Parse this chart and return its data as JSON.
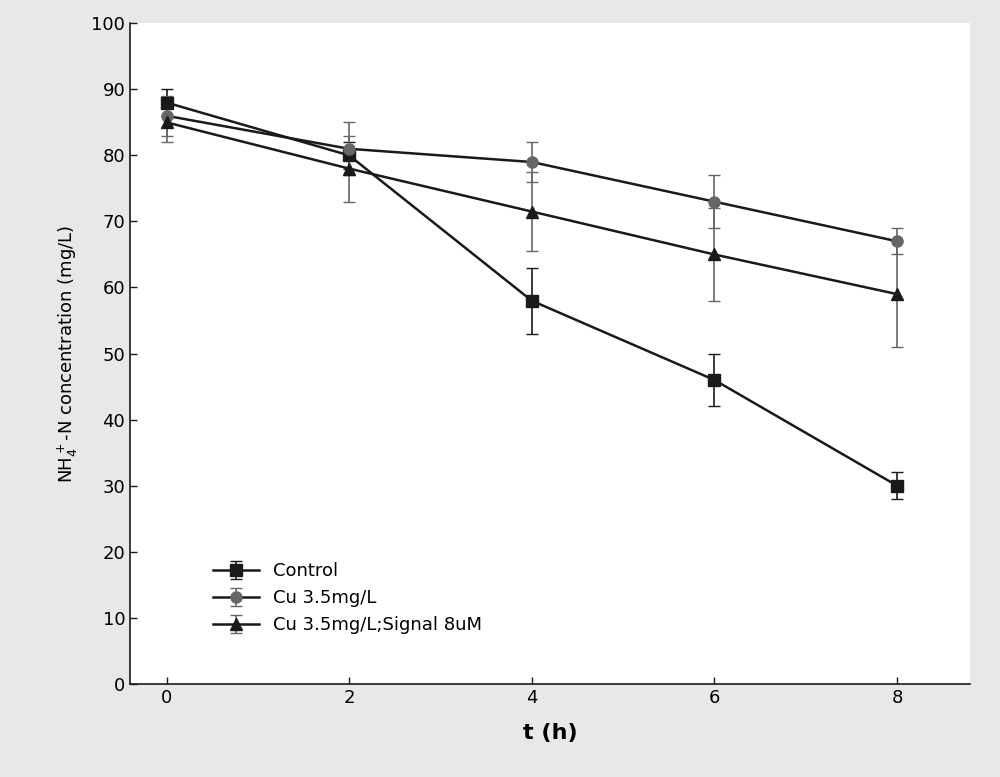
{
  "x": [
    0,
    2,
    4,
    6,
    8
  ],
  "control_y": [
    88,
    80,
    58,
    46,
    30
  ],
  "control_yerr": [
    2,
    2,
    5,
    4,
    2
  ],
  "cu35_y": [
    86,
    81,
    79,
    73,
    67
  ],
  "cu35_yerr": [
    3,
    4,
    3,
    4,
    2
  ],
  "cu35sig_y": [
    85,
    78,
    71.5,
    65,
    59
  ],
  "cu35sig_yerr": [
    3,
    5,
    6,
    7,
    8
  ],
  "xlabel": "t (h)",
  "ylabel": "NH$_4^+$-N concentration (mg/L)",
  "ylim": [
    0,
    100
  ],
  "xlim": [
    -0.4,
    8.8
  ],
  "xticks": [
    0,
    2,
    4,
    6,
    8
  ],
  "yticks": [
    0,
    10,
    20,
    30,
    40,
    50,
    60,
    70,
    80,
    90,
    100
  ],
  "legend_labels": [
    "Control",
    "Cu 3.5mg/L",
    "Cu 3.5mg/L;Signal 8uM"
  ],
  "dark_color": "#1a1a1a",
  "gray_color": "#666666",
  "markersize": 8,
  "linewidth": 1.8,
  "capsize": 4,
  "elinewidth": 1.2,
  "background_color": "#e8e8e8",
  "plot_bg_color": "#ffffff"
}
